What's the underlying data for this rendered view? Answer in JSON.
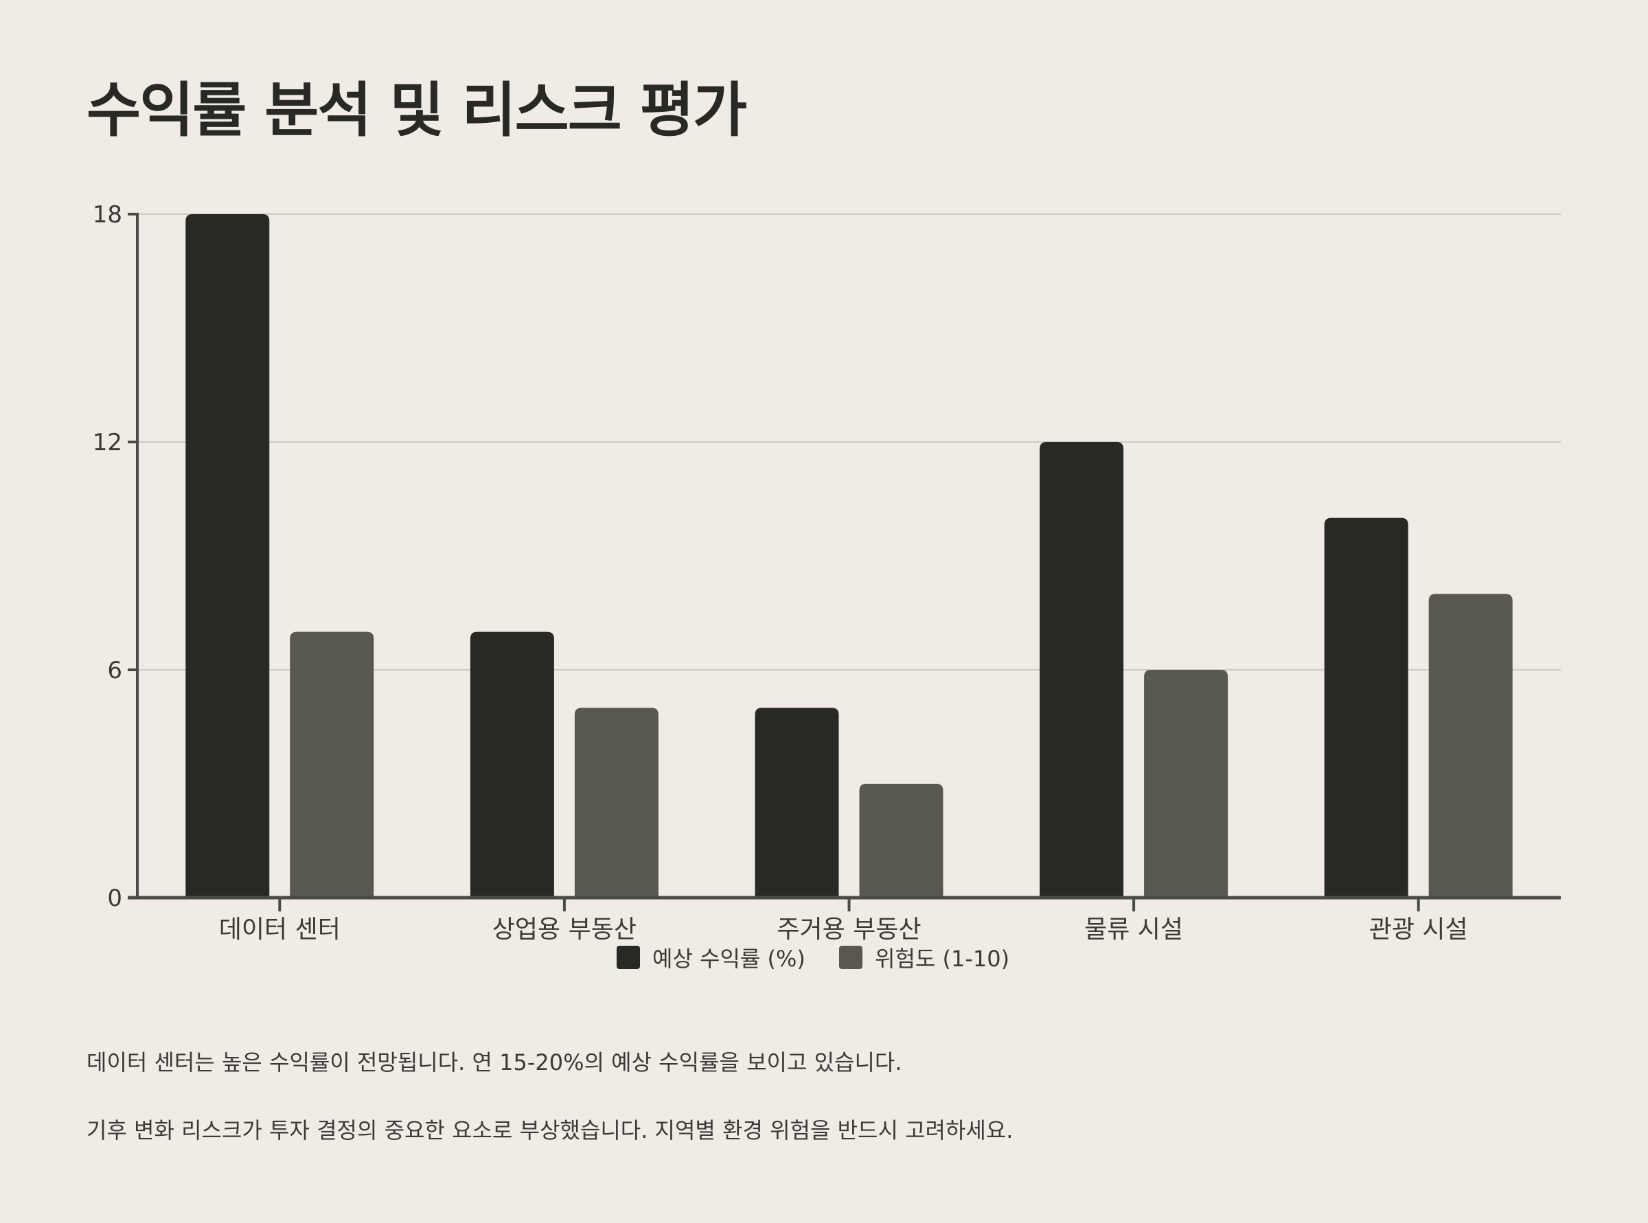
{
  "title": "수익률 분석 및 리스크 평가",
  "colors": {
    "background": "#f0ece5",
    "series_return": "#282925",
    "series_risk": "#585850",
    "axis": "#4a4a46",
    "grid": "#cfcbc3"
  },
  "chart_data": {
    "type": "bar",
    "title": "수익률 분석 및 리스크 평가",
    "categories": [
      "데이터 센터",
      "상업용 부동산",
      "주거용 부동산",
      "물류 시설",
      "관광 시설"
    ],
    "series": [
      {
        "name": "예상 수익률 (%)",
        "values": [
          18,
          7,
          5,
          12,
          10
        ]
      },
      {
        "name": "위험도 (1-10)",
        "values": [
          7,
          5,
          3,
          6,
          8
        ]
      }
    ],
    "ylim": [
      0,
      18
    ],
    "yticks": [
      0,
      6,
      12,
      18
    ],
    "grid": true,
    "legend": "bottom-center"
  },
  "notes": [
    "데이터 센터는 높은 수익률이 전망됩니다. 연 15-20%의 예상 수익률을 보이고 있습니다.",
    "기후 변화 리스크가 투자 결정의 중요한 요소로 부상했습니다. 지역별 환경 위험을 반드시 고려하세요."
  ]
}
